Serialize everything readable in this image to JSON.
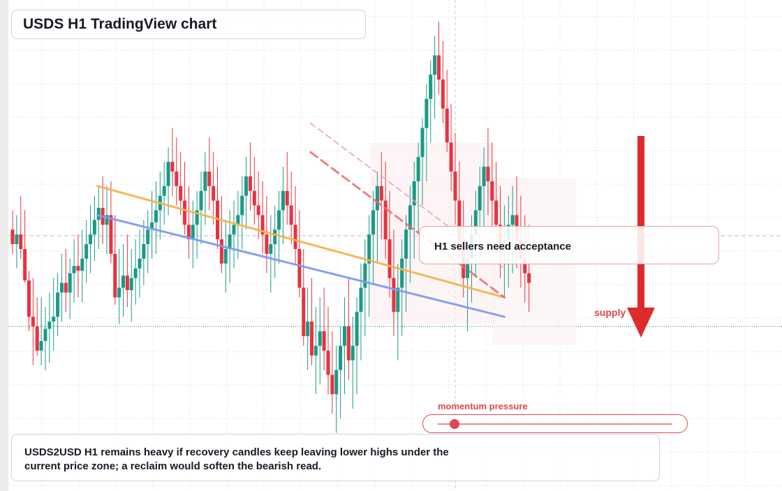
{
  "title": "USDS H1 TradingView chart",
  "callout": "H1 sellers need acceptance",
  "supply_label": "supply",
  "momentum_label": "momentum pressure",
  "momentum_level": 0.07,
  "note": "USDS2USD H1 remains heavy if recovery candles keep leaving lower highs under the current price zone; a reclaim would soften the bearish read.",
  "colors": {
    "bull": "#1a9a86",
    "bear": "#e8323f",
    "accent": "#e0474c",
    "trend_orange": "#f5b350",
    "trend_blue": "#7e9cf0",
    "grid": "#dfe5ee"
  },
  "chart_data": {
    "type": "candlestick",
    "timeframe": "H1",
    "ylim": [
      0,
      100
    ],
    "candles": [
      [
        54.0,
        58.0,
        49.0,
        51.0
      ],
      [
        51.0,
        57.0,
        46.0,
        53.0
      ],
      [
        53.0,
        61.0,
        48.0,
        50.0
      ],
      [
        50.0,
        58.0,
        43.0,
        43.5
      ],
      [
        43.5,
        45.5,
        33.0,
        36.0
      ],
      [
        36.0,
        44.0,
        26.0,
        34.0
      ],
      [
        34.0,
        40.0,
        28.0,
        29.0
      ],
      [
        29.0,
        40.0,
        26.0,
        31.0
      ],
      [
        31.0,
        38.0,
        25.0,
        33.5
      ],
      [
        33.5,
        41.0,
        26.5,
        35.0
      ],
      [
        35.0,
        44.0,
        29.0,
        36.0
      ],
      [
        36.0,
        45.0,
        32.0,
        41.0
      ],
      [
        41.0,
        49.0,
        35.0,
        43.0
      ],
      [
        43.0,
        50.0,
        37.0,
        41.0
      ],
      [
        41.0,
        48.0,
        35.5,
        45.0
      ],
      [
        45.0,
        52.0,
        39.0,
        46.5
      ],
      [
        46.5,
        53.0,
        40.0,
        45.5
      ],
      [
        45.5,
        54.0,
        39.0,
        48.0
      ],
      [
        48.0,
        56.0,
        43.0,
        51.0
      ],
      [
        51.0,
        59.0,
        45.0,
        53.0
      ],
      [
        53.0,
        61.0,
        47.5,
        56.0
      ],
      [
        56.0,
        63.0,
        50.0,
        58.5
      ],
      [
        58.5,
        65.0,
        51.0,
        55.0
      ],
      [
        55.0,
        63.0,
        49.0,
        57.0
      ],
      [
        57.0,
        64.0,
        47.0,
        49.0
      ],
      [
        49.0,
        57.0,
        38.5,
        40.0
      ],
      [
        40.0,
        50.0,
        34.5,
        42.0
      ],
      [
        42.0,
        51.0,
        36.0,
        44.5
      ],
      [
        44.5,
        53.0,
        38.0,
        41.5
      ],
      [
        41.5,
        50.0,
        35.0,
        44.0
      ],
      [
        44.0,
        52.0,
        38.5,
        46.0
      ],
      [
        46.0,
        54.0,
        40.0,
        48.0
      ],
      [
        48.0,
        56.0,
        42.5,
        51.0
      ],
      [
        51.0,
        58.0,
        45.0,
        54.0
      ],
      [
        54.0,
        62.0,
        48.0,
        55.5
      ],
      [
        55.5,
        64.0,
        49.0,
        58.0
      ],
      [
        58.0,
        66.0,
        52.0,
        61.0
      ],
      [
        61.0,
        68.0,
        55.0,
        63.0
      ],
      [
        63.0,
        71.0,
        57.0,
        68.0
      ],
      [
        68.0,
        75.0,
        61.0,
        66.0
      ],
      [
        66.0,
        73.0,
        59.0,
        63.0
      ],
      [
        63.0,
        70.0,
        57.0,
        60.0
      ],
      [
        60.0,
        68.0,
        53.0,
        55.0
      ],
      [
        55.0,
        63.0,
        48.0,
        52.0
      ],
      [
        52.0,
        60.0,
        46.0,
        55.0
      ],
      [
        55.0,
        62.0,
        48.0,
        58.0
      ],
      [
        58.0,
        66.0,
        51.0,
        62.0
      ],
      [
        62.0,
        70.0,
        55.0,
        66.0
      ],
      [
        66.0,
        73.0,
        58.0,
        63.0
      ],
      [
        63.0,
        70.0,
        55.0,
        60.0
      ],
      [
        60.0,
        67.0,
        50.0,
        52.0
      ],
      [
        52.0,
        61.0,
        45.0,
        47.0
      ],
      [
        47.0,
        56.0,
        41.0,
        50.0
      ],
      [
        50.0,
        58.0,
        43.0,
        53.0
      ],
      [
        53.0,
        60.0,
        46.0,
        55.0
      ],
      [
        55.0,
        62.0,
        48.0,
        57.0
      ],
      [
        57.0,
        65.0,
        50.0,
        61.0
      ],
      [
        61.0,
        69.0,
        54.0,
        65.0
      ],
      [
        65.0,
        72.0,
        58.0,
        62.0
      ],
      [
        62.0,
        69.0,
        55.0,
        59.0
      ],
      [
        59.0,
        66.0,
        52.0,
        57.0
      ],
      [
        57.0,
        64.0,
        49.0,
        53.0
      ],
      [
        53.0,
        61.0,
        45.0,
        49.0
      ],
      [
        49.0,
        57.0,
        41.0,
        51.0
      ],
      [
        51.0,
        59.0,
        44.0,
        54.0
      ],
      [
        54.0,
        62.0,
        47.0,
        58.0
      ],
      [
        58.0,
        67.0,
        51.0,
        62.0
      ],
      [
        62.0,
        70.0,
        55.0,
        59.0
      ],
      [
        59.0,
        66.0,
        51.0,
        55.0
      ],
      [
        55.0,
        63.0,
        47.0,
        50.0
      ],
      [
        50.0,
        58.0,
        40.0,
        42.0
      ],
      [
        42.0,
        50.0,
        30.0,
        32.0
      ],
      [
        32.0,
        42.0,
        25.0,
        35.0
      ],
      [
        35.0,
        44.0,
        26.0,
        28.0
      ],
      [
        28.0,
        38.0,
        20.0,
        30.0
      ],
      [
        30.0,
        40.0,
        22.0,
        33.0
      ],
      [
        33.0,
        42.0,
        25.0,
        29.0
      ],
      [
        29.0,
        38.0,
        20.0,
        24.0
      ],
      [
        24.0,
        33.0,
        16.0,
        20.0
      ],
      [
        20.0,
        30.0,
        12.0,
        25.0
      ],
      [
        25.0,
        34.0,
        15.0,
        30.0
      ],
      [
        30.0,
        40.0,
        20.0,
        34.0
      ],
      [
        34.0,
        44.0,
        23.0,
        27.0
      ],
      [
        27.0,
        36.0,
        17.0,
        30.0
      ],
      [
        30.0,
        40.0,
        20.0,
        37.0
      ],
      [
        37.0,
        47.0,
        27.0,
        42.0
      ],
      [
        42.0,
        52.0,
        32.0,
        47.0
      ],
      [
        47.0,
        57.0,
        36.0,
        53.0
      ],
      [
        53.0,
        62.0,
        43.0,
        58.0
      ],
      [
        58.0,
        66.0,
        47.0,
        63.0
      ],
      [
        63.0,
        70.0,
        52.0,
        60.0
      ],
      [
        60.0,
        68.0,
        48.0,
        52.0
      ],
      [
        52.0,
        62.0,
        40.0,
        44.0
      ],
      [
        44.0,
        54.0,
        32.0,
        37.0
      ],
      [
        37.0,
        47.0,
        27.0,
        42.0
      ],
      [
        42.0,
        52.0,
        32.0,
        48.0
      ],
      [
        48.0,
        57.0,
        37.0,
        54.0
      ],
      [
        54.0,
        63.0,
        43.0,
        59.0
      ],
      [
        59.0,
        68.0,
        48.0,
        64.0
      ],
      [
        64.0,
        72.0,
        53.0,
        69.0
      ],
      [
        69.0,
        77.0,
        59.0,
        75.0
      ],
      [
        75.0,
        84.0,
        64.0,
        81.0
      ],
      [
        81.0,
        89.0,
        72.0,
        86.0
      ],
      [
        86.0,
        94.0,
        77.0,
        90.0
      ],
      [
        90.0,
        97.0,
        82.0,
        85.0
      ],
      [
        85.0,
        93.0,
        76.0,
        79.0
      ],
      [
        79.0,
        87.0,
        70.0,
        72.0
      ],
      [
        72.0,
        80.0,
        62.0,
        66.0
      ],
      [
        66.0,
        74.0,
        55.0,
        60.0
      ],
      [
        60.0,
        68.0,
        48.0,
        52.0
      ],
      [
        52.0,
        60.0,
        40.0,
        44.0
      ],
      [
        44.0,
        52.0,
        33.0,
        48.0
      ],
      [
        48.0,
        57.0,
        39.0,
        53.0
      ],
      [
        53.0,
        62.0,
        44.0,
        58.0
      ],
      [
        58.0,
        67.0,
        48.0,
        63.0
      ],
      [
        63.0,
        71.0,
        54.0,
        67.0
      ],
      [
        67.0,
        75.0,
        57.0,
        64.0
      ],
      [
        64.0,
        72.0,
        53.0,
        60.0
      ],
      [
        60.0,
        68.0,
        49.0,
        55.0
      ],
      [
        55.0,
        63.0,
        44.0,
        50.0
      ],
      [
        50.0,
        59.0,
        40.0,
        52.0
      ],
      [
        52.0,
        61.0,
        42.0,
        55.0
      ],
      [
        55.0,
        63.0,
        45.0,
        57.0
      ],
      [
        57.0,
        65.0,
        46.0,
        52.0
      ],
      [
        52.0,
        61.0,
        42.0,
        48.0
      ],
      [
        48.0,
        57.0,
        39.0,
        45.0
      ],
      [
        45.0,
        55.0,
        37.0,
        43.0
      ]
    ],
    "trendlines": [
      {
        "color": "orange",
        "from": [
          20,
          63
        ],
        "to": [
          120,
          40
        ]
      },
      {
        "color": "blue",
        "from": [
          20,
          57
        ],
        "to": [
          120,
          36
        ]
      },
      {
        "color": "red-dashed",
        "from": [
          72,
          70
        ],
        "to": [
          120,
          40
        ]
      },
      {
        "color": "red-dashed-faint",
        "from": [
          72,
          76
        ],
        "to": [
          120,
          46
        ]
      }
    ],
    "grid": true
  }
}
